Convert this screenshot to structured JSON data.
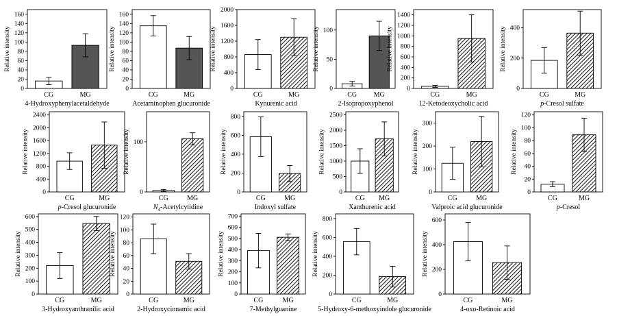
{
  "chart_data": [
    {
      "type": "bar",
      "title": "4-Hydroxyphenylacetaldehyde",
      "ylabel": "Relative intensity",
      "categories": [
        "CG",
        "MG"
      ],
      "values": [
        16,
        93
      ],
      "errors": [
        8,
        25
      ],
      "ylim": [
        0,
        170
      ],
      "yticks": [
        0,
        20,
        40,
        60,
        80,
        100,
        120,
        140,
        160
      ],
      "fills": [
        "white",
        "dark"
      ]
    },
    {
      "type": "bar",
      "title": "Acetaminophen glucuronide",
      "ylabel": "Relative intensity",
      "categories": [
        "CG",
        "MG"
      ],
      "values": [
        135,
        87
      ],
      "errors": [
        22,
        25
      ],
      "ylim": [
        0,
        170
      ],
      "yticks": [
        0,
        20,
        40,
        60,
        80,
        100,
        120,
        140,
        160
      ],
      "fills": [
        "white",
        "dark"
      ]
    },
    {
      "type": "bar",
      "title": "Kynurenic acid",
      "ylabel": "Relative intensity",
      "categories": [
        "CG",
        "MG"
      ],
      "values": [
        860,
        1300
      ],
      "errors": [
        380,
        470
      ],
      "ylim": [
        0,
        2000
      ],
      "yticks": [
        0,
        400,
        800,
        1200,
        1600,
        2000
      ],
      "fills": [
        "white",
        "hatch"
      ]
    },
    {
      "type": "bar",
      "title": "2-Isopropoxyphenol",
      "ylabel": "Relative intensity",
      "categories": [
        "CG",
        "MG"
      ],
      "values": [
        8,
        90
      ],
      "errors": [
        4,
        25
      ],
      "ylim": [
        0,
        135
      ],
      "yticks": [
        0,
        50,
        100
      ],
      "fills": [
        "white",
        "dark"
      ]
    },
    {
      "type": "bar",
      "title": "12-Ketodeoxycholic acid",
      "ylabel": "Relative intensity",
      "categories": [
        "CG",
        "MG"
      ],
      "values": [
        40,
        950
      ],
      "errors": [
        20,
        450
      ],
      "ylim": [
        0,
        1500
      ],
      "yticks": [
        0,
        200,
        400,
        600,
        800,
        1000,
        1200,
        1400
      ],
      "fills": [
        "white",
        "hatch"
      ]
    },
    {
      "type": "bar",
      "title": "p-Cresol sulfate",
      "title_italic": "p",
      "title_rest": "-Cresol sulfate",
      "ylabel": "Relative intensity",
      "categories": [
        "CG",
        "MG"
      ],
      "values": [
        185,
        365
      ],
      "errors": [
        85,
        145
      ],
      "ylim": [
        0,
        520
      ],
      "yticks": [
        0,
        200,
        400
      ],
      "fills": [
        "white",
        "hatch"
      ]
    },
    {
      "type": "bar",
      "title": "p-Cresol glucuronide",
      "title_italic": "p",
      "title_rest": "-Cresol glucuronide",
      "ylabel": "Relative intensity",
      "categories": [
        "CG",
        "MG"
      ],
      "values": [
        960,
        1460
      ],
      "errors": [
        260,
        720
      ],
      "ylim": [
        0,
        2500
      ],
      "yticks": [
        0,
        400,
        800,
        1200,
        1600,
        2000,
        2400
      ],
      "fills": [
        "white",
        "hatch"
      ]
    },
    {
      "type": "bar",
      "title": "N4-Acetylcytidine",
      "title_italic": "N",
      "title_sub": "4",
      "title_rest": "-Acetylcytidine",
      "ylabel": "Relative intensity",
      "categories": [
        "CG",
        "MG"
      ],
      "values": [
        3,
        106
      ],
      "errors": [
        2,
        12
      ],
      "ylim": [
        0,
        160
      ],
      "yticks": [
        0,
        100
      ],
      "fills": [
        "white",
        "hatch"
      ]
    },
    {
      "type": "bar",
      "title": "Indoxyl sulfate",
      "ylabel": "Relative intensity",
      "categories": [
        "CG",
        "MG"
      ],
      "values": [
        585,
        195
      ],
      "errors": [
        210,
        85
      ],
      "ylim": [
        0,
        850
      ],
      "yticks": [
        0,
        200,
        400,
        600,
        800
      ],
      "fills": [
        "white",
        "hatch"
      ]
    },
    {
      "type": "bar",
      "title": "Xanthurenic acid",
      "ylabel": "Relative intensity",
      "categories": [
        "CG",
        "MG"
      ],
      "values": [
        1000,
        1720
      ],
      "errors": [
        400,
        550
      ],
      "ylim": [
        0,
        2600
      ],
      "yticks": [
        0,
        500,
        1000,
        1500,
        2000,
        2500
      ],
      "fills": [
        "white",
        "hatch"
      ]
    },
    {
      "type": "bar",
      "title": "Valproic acid glucuronide",
      "ylabel": "Relative intensity",
      "categories": [
        "CG",
        "MG"
      ],
      "values": [
        125,
        220
      ],
      "errors": [
        70,
        110
      ],
      "ylim": [
        0,
        350
      ],
      "yticks": [
        0,
        100,
        200,
        300
      ],
      "fills": [
        "white",
        "hatch"
      ]
    },
    {
      "type": "bar",
      "title": "p-Cresol",
      "title_italic": "p",
      "title_rest": "-Cresol",
      "ylabel": "Relative intensity",
      "categories": [
        "CG",
        "MG"
      ],
      "values": [
        12,
        89
      ],
      "errors": [
        4,
        26
      ],
      "ylim": [
        0,
        125
      ],
      "yticks": [
        0,
        20,
        40,
        60,
        80,
        100,
        120
      ],
      "fills": [
        "white",
        "hatch"
      ]
    },
    {
      "type": "bar",
      "title": "3-Hydroxyanthranilic acid",
      "ylabel": "Relative intensity",
      "categories": [
        "CG",
        "MG"
      ],
      "values": [
        220,
        545
      ],
      "errors": [
        100,
        55
      ],
      "ylim": [
        0,
        620
      ],
      "yticks": [
        0,
        100,
        200,
        300,
        400,
        500,
        600
      ],
      "fills": [
        "white",
        "hatch"
      ]
    },
    {
      "type": "bar",
      "title": "2-Hydroxycinnamic acid",
      "ylabel": "Relative intensity",
      "categories": [
        "CG",
        "MG"
      ],
      "values": [
        86,
        51
      ],
      "errors": [
        23,
        12
      ],
      "ylim": [
        0,
        125
      ],
      "yticks": [
        0,
        20,
        40,
        60,
        80,
        100,
        120
      ],
      "fills": [
        "white",
        "hatch"
      ]
    },
    {
      "type": "bar",
      "title": "7-Methylguanine",
      "ylabel": "Relative intensity",
      "categories": [
        "CG",
        "MG"
      ],
      "values": [
        390,
        510
      ],
      "errors": [
        155,
        30
      ],
      "ylim": [
        0,
        720
      ],
      "yticks": [
        0,
        100,
        200,
        300,
        400,
        500,
        600,
        700
      ],
      "fills": [
        "white",
        "hatch"
      ]
    },
    {
      "type": "bar",
      "title": "5-Hydroxy-6-methoxyindole glucuronide",
      "ylabel": "Relative intensity",
      "categories": [
        "CG",
        "MG"
      ],
      "values": [
        555,
        185
      ],
      "errors": [
        140,
        110
      ],
      "ylim": [
        0,
        850
      ],
      "yticks": [
        0,
        200,
        400,
        600,
        800
      ],
      "fills": [
        "white",
        "hatch"
      ]
    },
    {
      "type": "bar",
      "title": "4-oxo-Retinoic acid",
      "ylabel": "Relative intensity",
      "categories": [
        "CG",
        "MG"
      ],
      "values": [
        425,
        255
      ],
      "errors": [
        155,
        135
      ],
      "ylim": [
        0,
        650
      ],
      "yticks": [
        0,
        200,
        400,
        600
      ],
      "fills": [
        "white",
        "hatch"
      ]
    }
  ]
}
